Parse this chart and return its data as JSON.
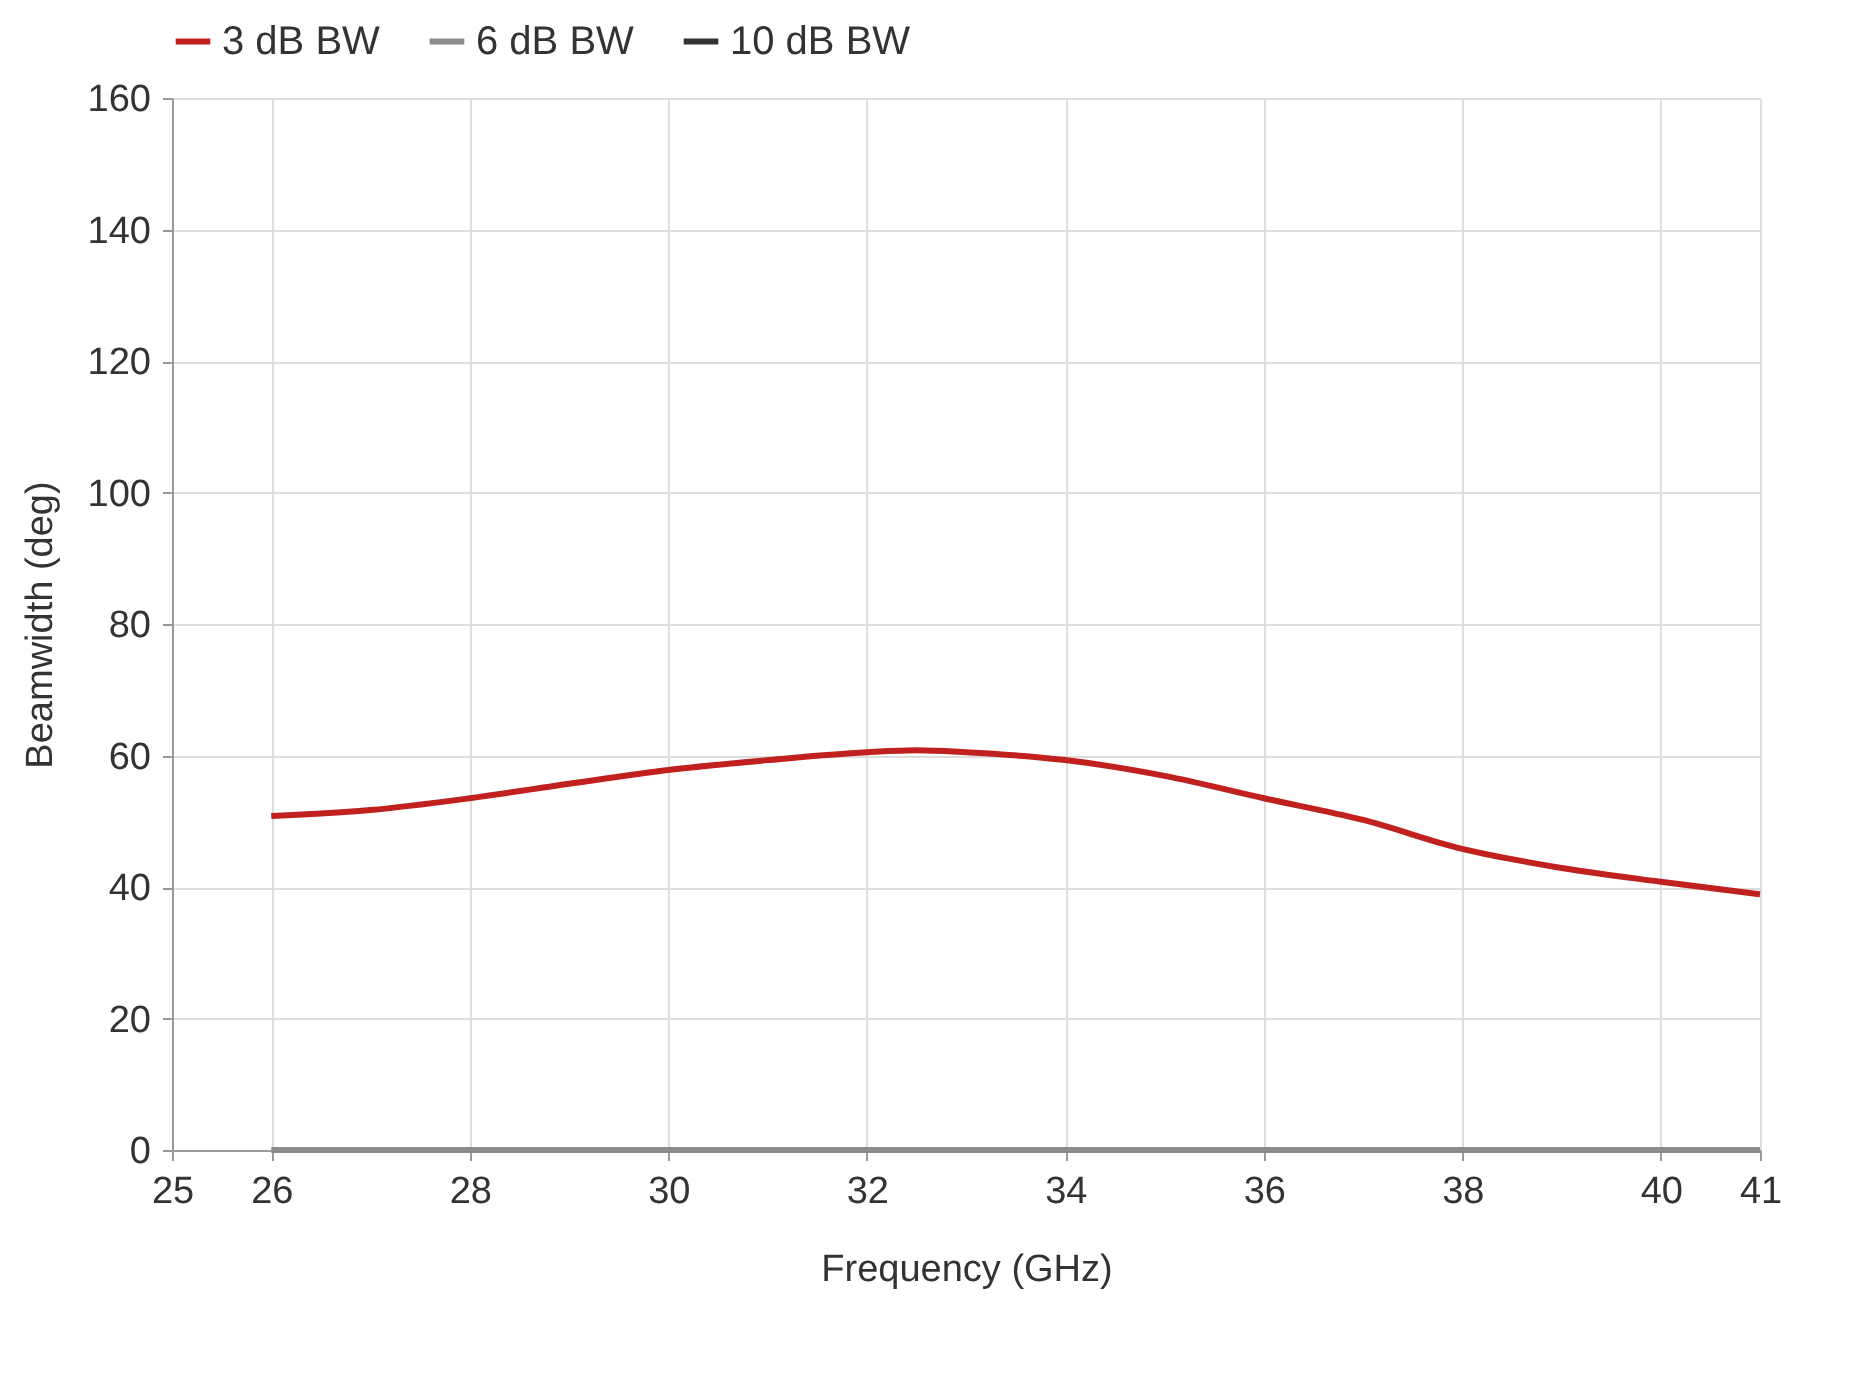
{
  "chart_data": {
    "type": "line",
    "xlabel": "Frequency (GHz)",
    "ylabel": "Beamwidth (deg)",
    "xlim": [
      25,
      41
    ],
    "xticks": [
      25,
      26,
      28,
      30,
      32,
      34,
      36,
      38,
      40,
      41
    ],
    "ylim": [
      0,
      160
    ],
    "yticks": [
      0,
      20,
      40,
      60,
      80,
      100,
      120,
      140,
      160
    ],
    "grid": true,
    "legend": "top",
    "line_style": "solid",
    "series": [
      {
        "name": "3 dB BW",
        "color": "#c0201e",
        "x": [
          26,
          27,
          28,
          29,
          30,
          31,
          32,
          32.5,
          33,
          34,
          35,
          36,
          37,
          38,
          39,
          40,
          41
        ],
        "values": [
          50.8,
          51.7,
          53.5,
          55.7,
          57.8,
          59.3,
          60.5,
          60.8,
          60.5,
          59.3,
          56.9,
          53.5,
          50.2,
          45.8,
          42.9,
          40.8,
          38.9
        ]
      },
      {
        "name": "6 dB BW",
        "color": "#8c8c8c",
        "x": [
          26,
          41
        ],
        "values": [
          0,
          0
        ]
      },
      {
        "name": "10 dB BW",
        "color": "#333333"
      }
    ]
  }
}
